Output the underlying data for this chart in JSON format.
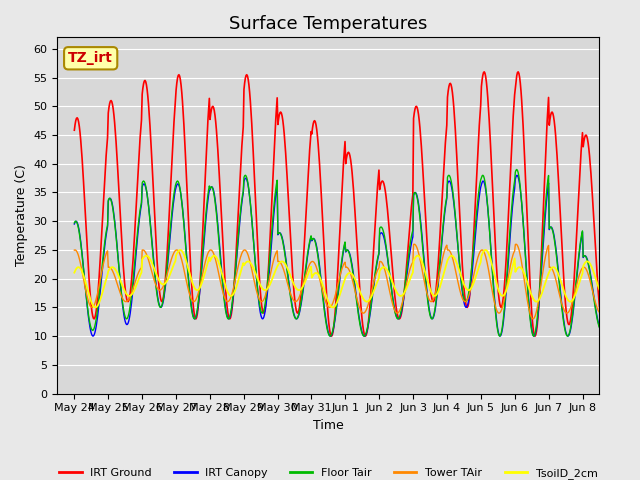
{
  "title": "Surface Temperatures",
  "xlabel": "Time",
  "ylabel": "Temperature (C)",
  "ylim": [
    0,
    62
  ],
  "yticks": [
    0,
    5,
    10,
    15,
    20,
    25,
    30,
    35,
    40,
    45,
    50,
    55,
    60
  ],
  "xtick_labels": [
    "May 24",
    "May 25",
    "May 26",
    "May 27",
    "May 28",
    "May 29",
    "May 30",
    "May 31",
    "Jun 1",
    "Jun 2",
    "Jun 3",
    "Jun 4",
    "Jun 5",
    "Jun 6",
    "Jun 7",
    "Jun 8"
  ],
  "series_colors": {
    "IRT Ground": "#ff0000",
    "IRT Canopy": "#0000ff",
    "Floor Tair": "#00bb00",
    "Tower TAir": "#ff8800",
    "TsoilD_2cm": "#ffff00"
  },
  "legend_entries": [
    "IRT Ground",
    "IRT Canopy",
    "Floor Tair",
    "Tower TAir",
    "TsoilD_2cm"
  ],
  "annotation_text": "TZ_irt",
  "annotation_color": "#cc0000",
  "annotation_bg": "#ffffaa",
  "background_color": "#e8e8e8",
  "plot_bg": "#d8d8d8",
  "title_fontsize": 13,
  "label_fontsize": 9,
  "tick_fontsize": 8,
  "n_days": 16,
  "pts_per_day": 48,
  "irt_ground_peaks": [
    48,
    51,
    54.5,
    55.5,
    50,
    55.5,
    49,
    47.5,
    42,
    37,
    50,
    54,
    56,
    56,
    49,
    45
  ],
  "irt_ground_mins": [
    13,
    16,
    16,
    13,
    13,
    14,
    14,
    10,
    10,
    13,
    16,
    15,
    15,
    10,
    12,
    12
  ],
  "canopy_peaks": [
    30,
    34,
    36.5,
    36.5,
    36,
    37.5,
    28,
    27,
    25,
    28,
    35,
    37,
    37,
    38,
    29,
    24
  ],
  "canopy_mins": [
    10,
    12,
    15,
    13,
    13,
    13,
    13,
    10,
    10,
    13,
    13,
    15,
    10,
    10,
    10,
    11
  ],
  "floor_peaks": [
    30,
    34,
    37,
    37,
    36,
    38,
    28,
    27,
    25,
    29,
    35,
    38,
    38,
    39,
    29,
    24
  ],
  "floor_mins": [
    11,
    13,
    15,
    13,
    13,
    14,
    13,
    10,
    10,
    13,
    13,
    16,
    10,
    10,
    10,
    11
  ],
  "tower_peaks": [
    25,
    22,
    25,
    25,
    25,
    25,
    23,
    23,
    22,
    23,
    26,
    25,
    25,
    26,
    22,
    22
  ],
  "tower_mins": [
    15,
    16,
    18,
    16,
    16,
    16,
    16,
    15,
    14,
    14,
    16,
    16,
    14,
    13,
    14,
    14
  ],
  "soil_peaks": [
    22,
    22,
    24,
    25,
    24,
    23,
    23,
    21,
    21,
    22,
    24,
    24,
    25,
    22,
    22,
    23
  ],
  "soil_mins": [
    15,
    17,
    19,
    18,
    17,
    18,
    18,
    15,
    16,
    17,
    17,
    18,
    17,
    16,
    16,
    17
  ]
}
